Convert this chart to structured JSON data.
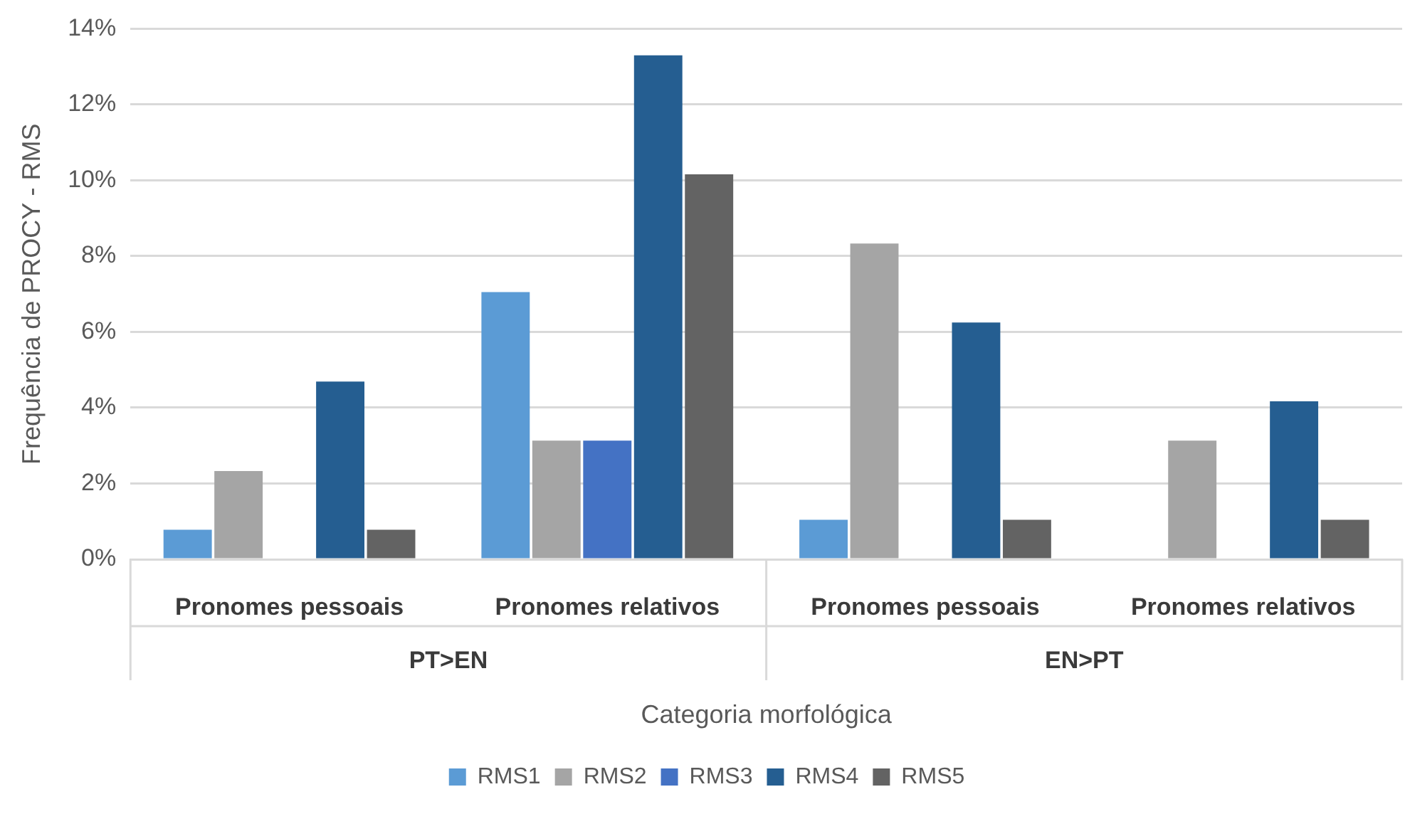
{
  "chart_data": {
    "type": "bar",
    "ylabel": "Frequência de PROCY - RMS",
    "xlabel": "Categoria morfológica",
    "categories": [
      "Pronomes pessoais",
      "Pronomes relativos",
      "Pronomes pessoais",
      "Pronomes relativos"
    ],
    "annotations": [
      "PT>EN",
      "EN>PT"
    ],
    "series": [
      {
        "name": "RMS1",
        "color": "#5b9bd5",
        "values": [
          0.78,
          7.05,
          1.04,
          null
        ]
      },
      {
        "name": "RMS2",
        "color": "#a5a5a5",
        "values": [
          2.33,
          3.13,
          8.33,
          3.13
        ]
      },
      {
        "name": "RMS3",
        "color": "#4472c4",
        "values": [
          null,
          3.13,
          null,
          null
        ]
      },
      {
        "name": "RMS4",
        "color": "#255e91",
        "values": [
          4.69,
          13.3,
          6.25,
          4.17
        ]
      },
      {
        "name": "RMS5",
        "color": "#636363",
        "values": [
          0.78,
          10.16,
          1.04,
          1.04
        ]
      }
    ],
    "ylim": [
      0,
      14
    ],
    "yticks": [
      {
        "value": 0,
        "label": "0%"
      },
      {
        "value": 2,
        "label": "2%"
      },
      {
        "value": 4,
        "label": "4%"
      },
      {
        "value": 6,
        "label": "6%"
      },
      {
        "value": 8,
        "label": "8%"
      },
      {
        "value": 10,
        "label": "10%"
      },
      {
        "value": 12,
        "label": "12%"
      },
      {
        "value": 14,
        "label": "14%"
      }
    ],
    "grid": "y",
    "legend": "bottom"
  }
}
